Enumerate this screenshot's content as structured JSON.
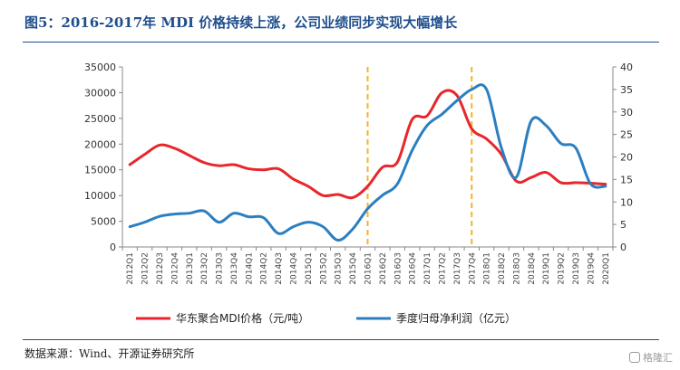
{
  "figure": {
    "title": "图5：2016-2017年 MDI 价格持续上涨，公司业绩同步实现大幅增长",
    "source": "数据来源：Wind、开源证券研究所",
    "watermark": "格隆汇"
  },
  "colors": {
    "title": "#1f4e8c",
    "price_line": "#e8262b",
    "profit_line": "#2b7fc0",
    "marker_line": "#f5b32b"
  },
  "chart_data": {
    "type": "line",
    "categories": [
      "2012Q1",
      "2012Q2",
      "2012Q3",
      "2012Q4",
      "2013Q1",
      "2013Q2",
      "2013Q3",
      "2013Q4",
      "2014Q1",
      "2014Q2",
      "2014Q3",
      "2014Q4",
      "2015Q1",
      "2015Q2",
      "2015Q3",
      "2015Q4",
      "2016Q1",
      "2016Q2",
      "2016Q3",
      "2016Q4",
      "2017Q1",
      "2017Q2",
      "2017Q3",
      "2017Q4",
      "2018Q1",
      "2018Q2",
      "2018Q3",
      "2018Q4",
      "2019Q1",
      "2019Q2",
      "2019Q3",
      "2019Q4",
      "2020Q1"
    ],
    "series": [
      {
        "name": "华东聚合MDI价格（元/吨）",
        "axis": "left",
        "color": "#e8262b",
        "values": [
          16000,
          18000,
          19800,
          19200,
          17800,
          16400,
          15800,
          16000,
          15200,
          15000,
          15200,
          13200,
          11800,
          10000,
          10200,
          9600,
          11800,
          15500,
          16500,
          24800,
          25500,
          30000,
          29500,
          23000,
          21000,
          18000,
          12800,
          13500,
          14500,
          12500,
          12500,
          12400,
          12200
        ]
      },
      {
        "name": "季度归母净利润（亿元）",
        "axis": "right",
        "color": "#2b7fc0",
        "values": [
          4.5,
          5.5,
          6.8,
          7.3,
          7.5,
          8.0,
          5.5,
          7.5,
          6.7,
          6.5,
          3.0,
          4.5,
          5.5,
          4.5,
          1.5,
          4.0,
          8.5,
          11.5,
          14.0,
          21.5,
          27.0,
          29.5,
          32.5,
          35.0,
          35.0,
          22.0,
          15.5,
          28.0,
          27.0,
          23.0,
          22.0,
          14.0,
          13.5
        ]
      }
    ],
    "y_left": {
      "min": 0,
      "max": 35000,
      "ticks": [
        0,
        5000,
        10000,
        15000,
        20000,
        25000,
        30000,
        35000
      ]
    },
    "y_right": {
      "min": 0,
      "max": 40,
      "ticks": [
        0,
        5,
        10,
        15,
        20,
        25,
        30,
        35,
        40
      ]
    },
    "reference_lines": [
      "2016Q1",
      "2017Q4"
    ],
    "legend_position": "bottom",
    "grid": false
  }
}
